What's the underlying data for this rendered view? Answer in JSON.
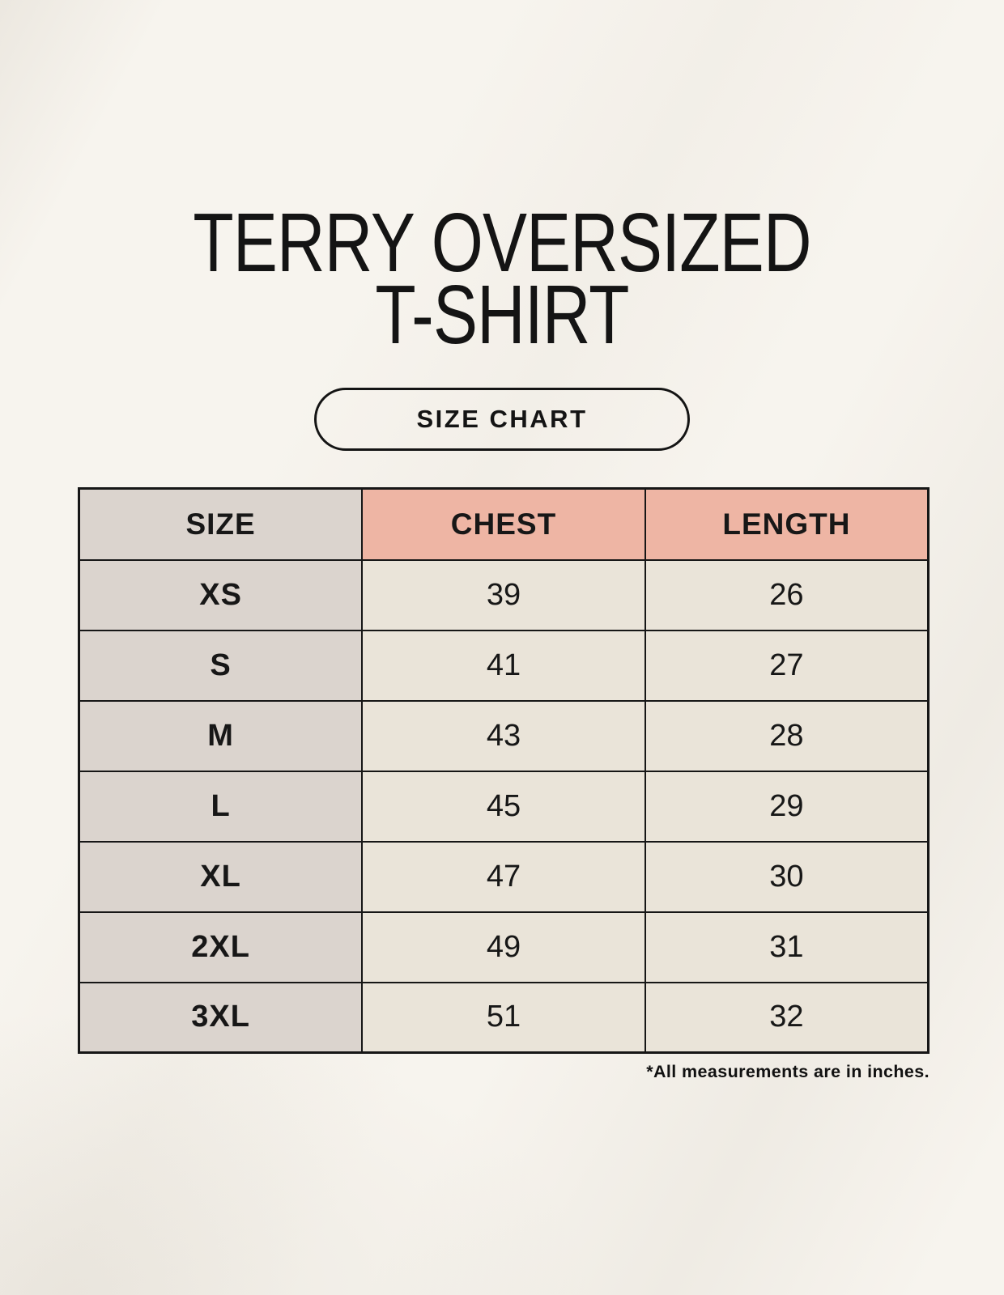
{
  "title": {
    "line1": "TERRY OVERSIZED",
    "line2": "T-SHIRT"
  },
  "size_chart_button": {
    "label": "SIZE CHART"
  },
  "table": {
    "columns": [
      "SIZE",
      "CHEST",
      "LENGTH"
    ],
    "rows": [
      {
        "size": "XS",
        "chest": "39",
        "length": "26"
      },
      {
        "size": "S",
        "chest": "41",
        "length": "27"
      },
      {
        "size": "M",
        "chest": "43",
        "length": "28"
      },
      {
        "size": "L",
        "chest": "45",
        "length": "29"
      },
      {
        "size": "XL",
        "chest": "47",
        "length": "30"
      },
      {
        "size": "2XL",
        "chest": "49",
        "length": "31"
      },
      {
        "size": "3XL",
        "chest": "51",
        "length": "32"
      }
    ]
  },
  "footnote": "*All measurements are in inches.",
  "colors": {
    "background": "#f7f4ee",
    "size_column": "#dbd4ce",
    "header_accent": "#eeb5a4",
    "data_cell": "#eae4d9",
    "table_border": "#161616",
    "text": "#171717"
  }
}
